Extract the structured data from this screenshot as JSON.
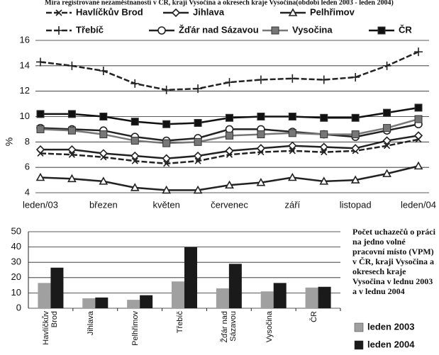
{
  "chart_data": [
    {
      "type": "line",
      "title": "Míra registrované nezaměstnanosti v ČR, kraji Vysočina a okresech kraje Vysočina(období leden 2003 - leden 2004)",
      "y_label": "%",
      "categories": [
        "leden/03",
        null,
        "březen",
        null,
        "květen",
        null,
        "červenec",
        null,
        "září",
        null,
        "listopad",
        null,
        "leden/04"
      ],
      "ylim": [
        4,
        16
      ],
      "yticks": [
        4,
        6,
        8,
        10,
        12,
        14,
        16
      ],
      "grid": true,
      "series": [
        {
          "name": "Havlíčkův Brod",
          "color": "#222222",
          "marker": "x",
          "dash": true,
          "values": [
            7.1,
            7.0,
            6.8,
            6.5,
            6.3,
            6.5,
            7.0,
            7.2,
            7.3,
            7.2,
            7.3,
            7.7,
            8.2
          ]
        },
        {
          "name": "Jihlava",
          "color": "#222222",
          "marker": "diamond",
          "dash": false,
          "values": [
            7.4,
            7.4,
            7.1,
            6.9,
            6.7,
            6.9,
            7.3,
            7.5,
            7.7,
            7.6,
            7.5,
            8.1,
            8.5
          ]
        },
        {
          "name": "Pelhřimov",
          "color": "#222222",
          "marker": "triangle",
          "dash": false,
          "values": [
            5.2,
            5.1,
            4.9,
            4.4,
            4.2,
            4.2,
            4.6,
            4.8,
            5.2,
            4.9,
            5.0,
            5.5,
            6.1
          ]
        },
        {
          "name": "Třebíč",
          "color": "#222222",
          "marker": "plus",
          "dash": true,
          "values": [
            14.3,
            14.0,
            13.6,
            12.6,
            12.1,
            12.2,
            12.7,
            12.9,
            13.0,
            12.9,
            13.1,
            14.0,
            15.1
          ]
        },
        {
          "name": "Žďár nad Sázavou",
          "color": "#222222",
          "marker": "circle",
          "dash": false,
          "values": [
            9.1,
            9.0,
            8.9,
            8.4,
            8.1,
            8.3,
            9.0,
            9.0,
            8.8,
            8.6,
            8.4,
            8.9,
            9.4
          ]
        },
        {
          "name": "Vysočina",
          "color": "#777777",
          "marker": "square",
          "dash": false,
          "values": [
            9.0,
            8.9,
            8.6,
            8.1,
            7.9,
            8.0,
            8.5,
            8.6,
            8.7,
            8.6,
            8.6,
            9.1,
            9.8
          ]
        },
        {
          "name": "ČR",
          "color": "#111111",
          "marker": "square",
          "dash": false,
          "values": [
            10.2,
            10.2,
            10.0,
            9.6,
            9.4,
            9.5,
            9.9,
            10.0,
            10.0,
            9.9,
            9.9,
            10.3,
            10.7
          ]
        }
      ]
    },
    {
      "type": "bar",
      "annotation": "Počet uchazečů o práci na jedno volné pracovní místo (VPM) v ČR, kraji Vysočina a okresech kraje Vysočina v lednu 2003 a v lednu 2004",
      "categories": [
        "Havlíčkův Brod",
        "Jihlava",
        "Pelhřimov",
        "Třebíč",
        "Žďár nad Sázavou",
        "Vysočina",
        "ČR"
      ],
      "ylim": [
        0,
        50
      ],
      "yticks": [
        0,
        10,
        20,
        30,
        40,
        50
      ],
      "grid": true,
      "series": [
        {
          "name": "leden 2003",
          "color": "#a0a0a0",
          "values": [
            16.5,
            6.5,
            5.5,
            17.5,
            13,
            11,
            13.5
          ]
        },
        {
          "name": "leden 2004",
          "color": "#1a1a1a",
          "values": [
            26.5,
            7,
            8.5,
            40,
            29,
            16.5,
            14
          ]
        }
      ]
    }
  ]
}
